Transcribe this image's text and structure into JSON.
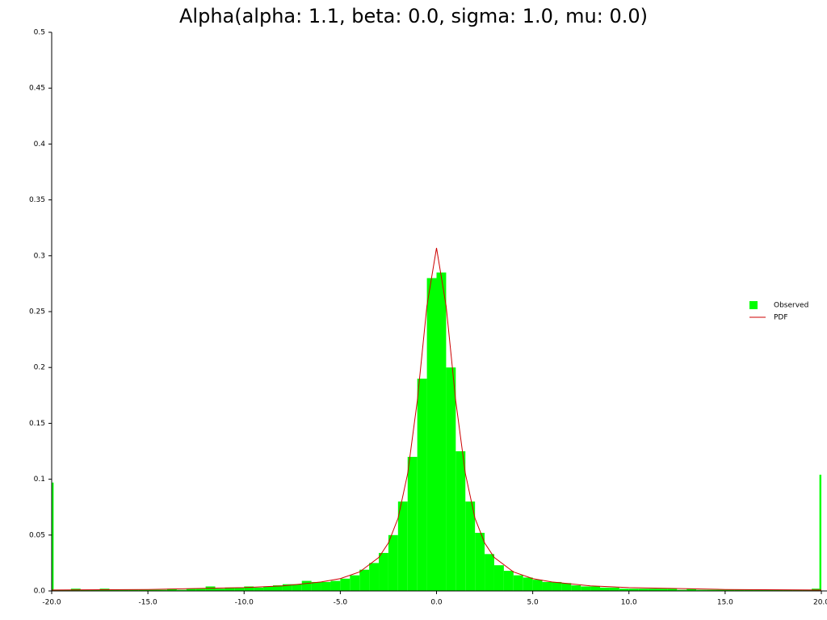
{
  "chart_data": {
    "type": "histogram",
    "title": "Alpha(alpha: 1.1, beta: 0.0, sigma: 1.0, mu: 0.0)",
    "legend": "right",
    "xlim": [
      -20,
      20
    ],
    "ylim": [
      0,
      0.5
    ],
    "xticks": [
      {
        "value": -20,
        "label": "-20.0"
      },
      {
        "value": -15,
        "label": "-15.0"
      },
      {
        "value": -10,
        "label": "-10.0"
      },
      {
        "value": -5,
        "label": "-5.0"
      },
      {
        "value": 0,
        "label": "0.0"
      },
      {
        "value": 5,
        "label": "5.0"
      },
      {
        "value": 10,
        "label": "10.0"
      },
      {
        "value": 15,
        "label": "15.0"
      },
      {
        "value": 20,
        "label": "20.0"
      }
    ],
    "yticks": [
      {
        "value": 0,
        "label": "0.0"
      },
      0.05,
      0.1,
      0.15,
      0.2,
      0.25,
      0.3,
      0.35,
      0.4,
      0.45,
      0.5
    ],
    "series": [
      {
        "name": "Observed",
        "type": "histogram",
        "color": "#00ff00",
        "bins": [
          -20,
          -19.9,
          -19.5,
          -19,
          -18.5,
          -18,
          -17.5,
          -17,
          -16.5,
          -16,
          -15.5,
          -15,
          -14.5,
          -14,
          -13.5,
          -13,
          -12.5,
          -12,
          -11.5,
          -11,
          -10.5,
          -10,
          -9.5,
          -9,
          -8.5,
          -8,
          -7.5,
          -7,
          -6.5,
          -6,
          -5.5,
          -5,
          -4.5,
          -4,
          -3.5,
          -3,
          -2.5,
          -2,
          -1.5,
          -1,
          -0.5,
          0,
          0.5,
          1,
          1.5,
          2,
          2.5,
          3,
          3.5,
          4,
          4.5,
          5,
          5.5,
          6,
          6.5,
          7,
          7.5,
          8,
          8.5,
          9,
          9.5,
          10,
          10.5,
          11,
          11.5,
          12,
          12.5,
          13,
          13.5,
          14,
          14.5,
          15,
          15.5,
          16,
          16.5,
          17,
          17.5,
          18,
          18.5,
          19,
          19.5,
          19.9,
          20
        ],
        "values": [
          0.097,
          0.001,
          0.001,
          0.002,
          0.001,
          0.001,
          0.002,
          0.001,
          0.001,
          0.001,
          0.001,
          0.001,
          0.001,
          0.002,
          0.001,
          0.002,
          0.002,
          0.004,
          0.002,
          0.003,
          0.003,
          0.004,
          0.003,
          0.004,
          0.005,
          0.006,
          0.006,
          0.009,
          0.008,
          0.008,
          0.009,
          0.011,
          0.014,
          0.019,
          0.025,
          0.034,
          0.05,
          0.08,
          0.12,
          0.19,
          0.28,
          0.285,
          0.2,
          0.125,
          0.08,
          0.052,
          0.033,
          0.023,
          0.018,
          0.014,
          0.012,
          0.01,
          0.008,
          0.008,
          0.007,
          0.005,
          0.004,
          0.004,
          0.003,
          0.003,
          0.002,
          0.002,
          0.002,
          0.002,
          0.002,
          0.002,
          0.001,
          0.002,
          0.001,
          0.001,
          0.001,
          0.001,
          0.001,
          0.001,
          0.001,
          0.001,
          0.001,
          0.001,
          0.001,
          0.001,
          0.002,
          0.104
        ]
      },
      {
        "name": "PDF",
        "type": "line",
        "color": "#cc0000",
        "x": [
          -20,
          -15,
          -10,
          -8,
          -6,
          -5,
          -4,
          -3,
          -2.5,
          -2,
          -1.5,
          -1,
          -0.5,
          0,
          0.5,
          1,
          1.5,
          2,
          2.5,
          3,
          4,
          5,
          6,
          8,
          10,
          15,
          20
        ],
        "values": [
          0.0008,
          0.0013,
          0.003,
          0.0045,
          0.008,
          0.011,
          0.017,
          0.03,
          0.043,
          0.065,
          0.105,
          0.17,
          0.255,
          0.307,
          0.255,
          0.17,
          0.105,
          0.065,
          0.043,
          0.03,
          0.017,
          0.011,
          0.008,
          0.0045,
          0.003,
          0.0013,
          0.0008
        ]
      }
    ]
  }
}
